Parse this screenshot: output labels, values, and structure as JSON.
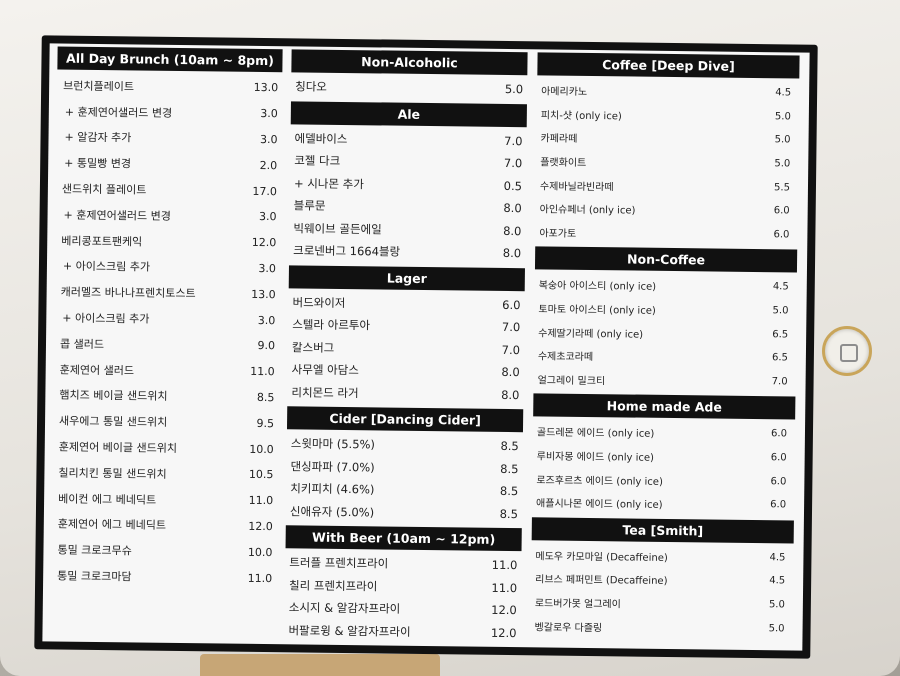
{
  "sections": [
    {
      "title": "All Day Brunch (10am ~ 8pm)",
      "items": [
        {
          "name": "브런치플레이트",
          "price": "13.0"
        },
        {
          "name": "+ 훈제연어샐러드 변경",
          "price": "3.0"
        },
        {
          "name": "+ 알감자 추가",
          "price": "3.0"
        },
        {
          "name": "+ 통밀빵 변경",
          "price": "2.0"
        },
        {
          "name": "샌드위치 플레이트",
          "price": "17.0"
        },
        {
          "name": "+ 훈제연어샐러드 변경",
          "price": "3.0"
        },
        {
          "name": "베리콩포트팬케익",
          "price": "12.0"
        },
        {
          "name": "+ 아이스크림 추가",
          "price": "3.0"
        },
        {
          "name": "캐러멜즈 바나나프렌치토스트",
          "price": "13.0"
        },
        {
          "name": "+ 아이스크림 추가",
          "price": "3.0"
        },
        {
          "name": "콥 샐러드",
          "price": "9.0"
        },
        {
          "name": "훈제연어 샐러드",
          "price": "11.0"
        },
        {
          "name": "햄치즈 베이글 샌드위치",
          "price": "8.5"
        },
        {
          "name": "새우에그 통밀 샌드위치",
          "price": "9.5"
        },
        {
          "name": "훈제연어 베이글 샌드위치",
          "price": "10.0"
        },
        {
          "name": "칠리치킨 통밀 샌드위치",
          "price": "10.5"
        },
        {
          "name": "베이컨 에그 베네딕트",
          "price": "11.0"
        },
        {
          "name": "훈제연어 에그 베네딕트",
          "price": "12.0"
        },
        {
          "name": "통밀 크로크무슈",
          "price": "10.0"
        },
        {
          "name": "통밀 크로크마담",
          "price": "11.0"
        }
      ]
    },
    {
      "title": "Non-Alcoholic",
      "items": [
        {
          "name": "칭다오",
          "price": "5.0"
        }
      ]
    },
    {
      "title": "Ale",
      "items": [
        {
          "name": "에델바이스",
          "price": "7.0"
        },
        {
          "name": "코젤 다크",
          "price": "7.0"
        },
        {
          "name": "+ 시나몬 추가",
          "price": "0.5"
        },
        {
          "name": "블루문",
          "price": "8.0"
        },
        {
          "name": "빅웨이브 골든에일",
          "price": "8.0"
        },
        {
          "name": "크로넨버그 1664블랑",
          "price": "8.0"
        }
      ]
    },
    {
      "title": "Lager",
      "items": [
        {
          "name": "버드와이저",
          "price": "6.0"
        },
        {
          "name": "스텔라 아르투아",
          "price": "7.0"
        },
        {
          "name": "칼스버그",
          "price": "7.0"
        },
        {
          "name": "사무엘 아담스",
          "price": "8.0"
        },
        {
          "name": "리치몬드 라거",
          "price": "8.0"
        }
      ]
    },
    {
      "title": "Cider [Dancing Cider]",
      "items": [
        {
          "name": "스윗마마 (5.5%)",
          "price": "8.5"
        },
        {
          "name": "댄싱파파 (7.0%)",
          "price": "8.5"
        },
        {
          "name": "치키피치 (4.6%)",
          "price": "8.5"
        },
        {
          "name": "신애유자 (5.0%)",
          "price": "8.5"
        }
      ]
    },
    {
      "title": "With Beer (10am ~ 12pm)",
      "items": [
        {
          "name": "트러플 프렌치프라이",
          "price": "11.0"
        },
        {
          "name": "칠리 프렌치프라이",
          "price": "11.0"
        },
        {
          "name": "소시지 & 알감자프라이",
          "price": "12.0"
        },
        {
          "name": "버팔로윙 & 알감자프라이",
          "price": "12.0"
        }
      ]
    },
    {
      "title": "Coffee [Deep Dive]",
      "items": [
        {
          "name": "아메리카노",
          "price": "4.5"
        },
        {
          "name": "피치-샷 (only ice)",
          "price": "5.0"
        },
        {
          "name": "카페라떼",
          "price": "5.0"
        },
        {
          "name": "플랫화이트",
          "price": "5.0"
        },
        {
          "name": "수제바닐라빈라떼",
          "price": "5.5"
        },
        {
          "name": "아인슈페너 (only ice)",
          "price": "6.0"
        },
        {
          "name": "아포가토",
          "price": "6.0"
        }
      ]
    },
    {
      "title": "Non-Coffee",
      "items": [
        {
          "name": "복숭아 아이스티 (only ice)",
          "price": "4.5"
        },
        {
          "name": "토마토 아이스티 (only ice)",
          "price": "5.0"
        },
        {
          "name": "수제딸기라떼 (only ice)",
          "price": "6.5"
        },
        {
          "name": "수제초코라떼",
          "price": "6.5"
        },
        {
          "name": "얼그레이 밀크티",
          "price": "7.0"
        }
      ]
    },
    {
      "title": "Home made Ade",
      "items": [
        {
          "name": "골드레몬 에이드 (only ice)",
          "price": "6.0"
        },
        {
          "name": "루비자몽 에이드 (only ice)",
          "price": "6.0"
        },
        {
          "name": "로즈후르츠 에이드 (only ice)",
          "price": "6.0"
        },
        {
          "name": "애플시나몬 에이드 (only ice)",
          "price": "6.0"
        }
      ]
    },
    {
      "title": "Tea [Smith]",
      "items": [
        {
          "name": "메도우 카모마일 (Decaffeine)",
          "price": "4.5"
        },
        {
          "name": "리브스 페퍼민트 (Decaffeine)",
          "price": "4.5"
        },
        {
          "name": "로드버가못 얼그레이",
          "price": "5.0"
        },
        {
          "name": "벵갈로우 다즐링",
          "price": "5.0"
        }
      ]
    }
  ]
}
